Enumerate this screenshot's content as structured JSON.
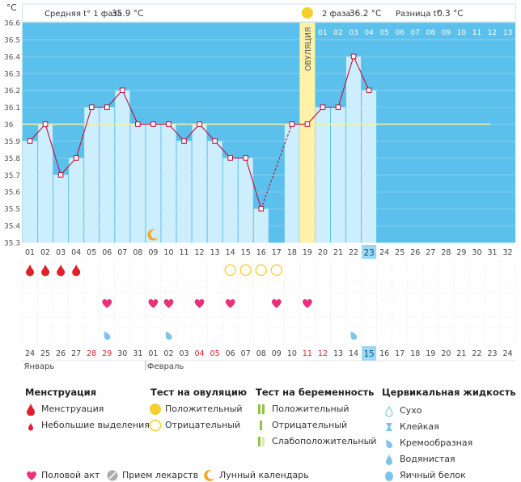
{
  "chart_data": {
    "type": "line",
    "title": "",
    "ylabel": "°C",
    "ylim": [
      35.3,
      36.6
    ],
    "yticks": [
      "36.6",
      "36.5",
      "36.4",
      "36.3",
      "36.2",
      "36.1",
      "36",
      "35.9",
      "35.8",
      "35.7",
      "35.6",
      "35.5",
      "35.4",
      "35.3"
    ],
    "cycle_days": [
      "01",
      "02",
      "03",
      "04",
      "05",
      "06",
      "07",
      "08",
      "09",
      "10",
      "11",
      "12",
      "13",
      "14",
      "15",
      "16",
      "17",
      "18",
      "19",
      "20",
      "21",
      "22",
      "23",
      "24",
      "25",
      "26",
      "27",
      "28",
      "29",
      "30",
      "31",
      "32"
    ],
    "calendar_dates": [
      "24",
      "25",
      "26",
      "27",
      "28",
      "29",
      "30",
      "31",
      "01",
      "02",
      "03",
      "04",
      "05",
      "06",
      "07",
      "08",
      "09",
      "10",
      "11",
      "12",
      "13",
      "14",
      "15",
      "16",
      "17",
      "18",
      "19",
      "20",
      "21",
      "22",
      "23",
      "24"
    ],
    "weekend_indices": [
      4,
      5,
      11,
      12,
      18,
      19
    ],
    "today_cycle_index": 22,
    "today_calendar_index": 22,
    "months": [
      {
        "index": 0,
        "label": "Январь"
      },
      {
        "index": 8,
        "label": "Февраль"
      }
    ],
    "temperatures": [
      35.9,
      36.0,
      35.7,
      35.8,
      36.1,
      36.1,
      36.2,
      36.0,
      36.0,
      36.0,
      35.9,
      36.0,
      35.9,
      35.8,
      35.8,
      35.5,
      null,
      36.0,
      36.0,
      36.1,
      36.1,
      36.4,
      36.2
    ],
    "dashed_segments": [
      [
        15,
        17
      ]
    ],
    "coverline": 36.0,
    "ovulation_index": 18,
    "ovulation_label": "ОВУЛЯЦИЯ",
    "phase2_days": [
      "01",
      "02",
      "03",
      "04",
      "05",
      "06",
      "07",
      "08",
      "09",
      "10",
      "11",
      "12",
      "13"
    ],
    "phase1_label": "Средняя t° 1 фаза",
    "phase1_value": "35.9 °C",
    "phase2_label": "2 фаза",
    "phase2_value": "36.2 °C",
    "diff_label": "Разница t°",
    "diff_value": "0.3 °C",
    "moon_index": 8,
    "menstruation_indices": [
      0,
      1,
      2,
      3
    ],
    "ovulation_test_negative_indices": [
      13,
      14,
      15,
      16
    ],
    "intercourse_indices": [
      5,
      8,
      9,
      11,
      13,
      16,
      18
    ],
    "cervical_creamy_indices": [
      5,
      9,
      21
    ]
  },
  "legend": {
    "menstruation": {
      "title": "Менструация",
      "items": [
        "Менструация",
        "Небольшие выделения"
      ]
    },
    "ovulation_test": {
      "title": "Тест на овуляцию",
      "items": [
        "Положительный",
        "Отрицательный"
      ]
    },
    "pregnancy_test": {
      "title": "Тест на беременность",
      "items": [
        "Положительный",
        "Отрицательный",
        "Слабоположительный"
      ]
    },
    "cervical": {
      "title": "Цервикальная жидкость",
      "items": [
        "Сухо",
        "Клейкая",
        "Кремообразная",
        "Водянистая",
        "Яичный белок"
      ]
    },
    "bottom": {
      "intercourse": "Половой акт",
      "medication": "Прием лекарств",
      "lunar": "Лунный календарь"
    }
  },
  "colors": {
    "band": "#5bc0eb",
    "bar": "#cdeefc",
    "line": "#c0103a",
    "ovulation": "#fff2a8",
    "today": "#9ad8f5",
    "pink": "#e8317a",
    "red": "#e0202a",
    "yellow": "#f5cf2c",
    "drop": "#7cc4ec",
    "green": "#8dc63f",
    "orange": "#f5a623",
    "grey": "#aaaaaa"
  }
}
